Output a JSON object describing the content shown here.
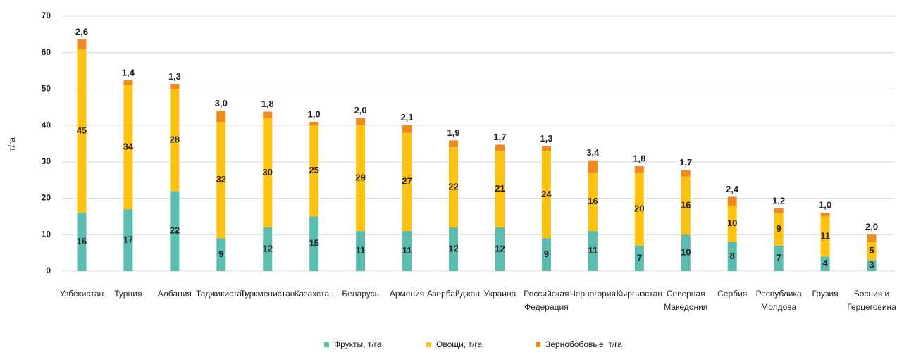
{
  "chart_data": {
    "type": "stacked_bar",
    "y_label": "т/га",
    "categories": [
      "Узбекистан",
      "Турция",
      "Албания",
      "Таджикистан",
      "Туркменистан",
      "Казахстан",
      "Беларусь",
      "Армения",
      "Азербайджан",
      "Украина",
      "Российская\nФедерация",
      "Черногория",
      "Кыргызстан",
      "Северная\nМакедония",
      "Сербия",
      "Республика\nМолдова",
      "Грузия",
      "Босния и\nГерцеговина"
    ],
    "series": [
      {
        "name": "Фрукты, т/га",
        "color": "#5bbcb0",
        "values": [
          16,
          17,
          22,
          9,
          12,
          15,
          11,
          11,
          12,
          12,
          9,
          11,
          7,
          10,
          8,
          7,
          4,
          3
        ]
      },
      {
        "name": "Овощи, т/га",
        "color": "#fdc20f",
        "values": [
          45,
          34,
          28,
          32,
          30,
          25,
          29,
          27,
          22,
          21,
          24,
          16,
          20,
          16,
          10,
          9,
          11,
          5
        ]
      },
      {
        "name": "Зернобобовые, т/га",
        "color": "#f08a1c",
        "values": [
          2.6,
          1.4,
          1.3,
          3.0,
          1.8,
          1.0,
          2.0,
          2.1,
          1.9,
          1.7,
          1.3,
          3.4,
          1.8,
          1.7,
          2.4,
          1.2,
          1.0,
          2.0
        ],
        "value_labels": [
          "2,6",
          "1,4",
          "1,3",
          "3,0",
          "1,8",
          "1,0",
          "2,0",
          "2,1",
          "1,9",
          "1,7",
          "1,3",
          "3,4",
          "1,8",
          "1,7",
          "2,4",
          "1,2",
          "1,0",
          "2,0"
        ]
      }
    ],
    "ylim": [
      0,
      70
    ],
    "yticks": [
      0,
      10,
      20,
      30,
      40,
      50,
      60,
      70
    ],
    "grid": true,
    "legend": "bottom"
  }
}
